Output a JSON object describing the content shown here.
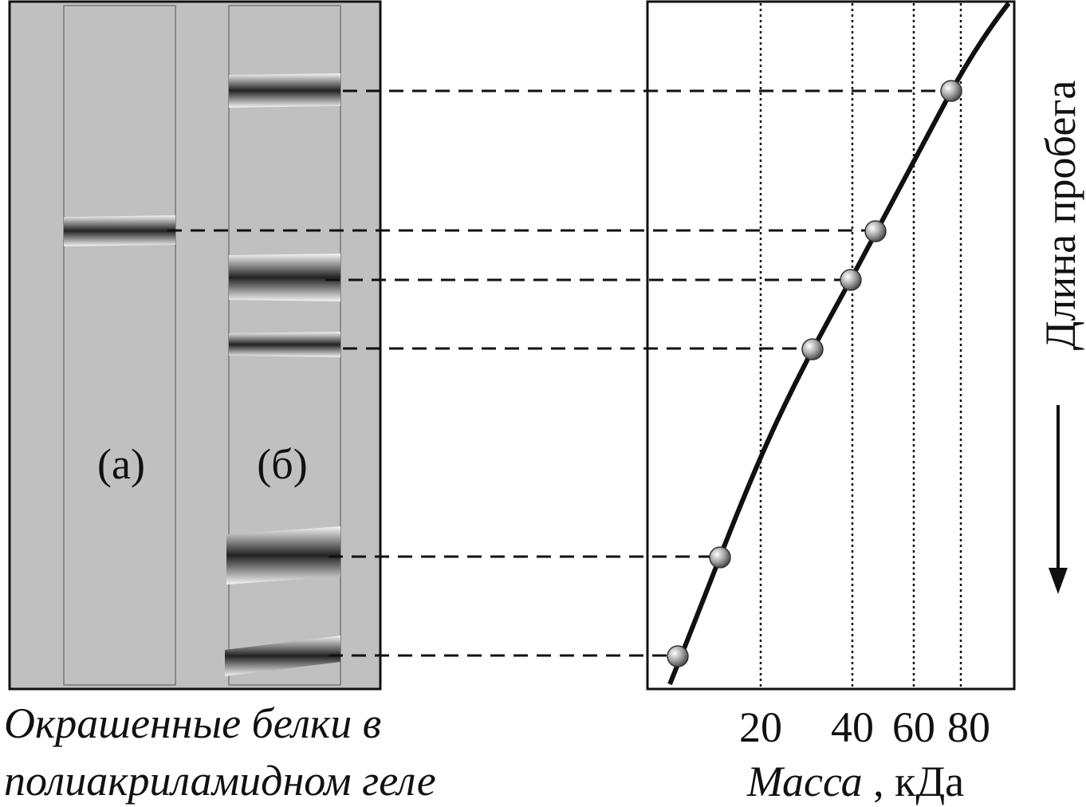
{
  "lanes": [
    "(а)",
    "(б)"
  ],
  "caption": [
    "Окрашенные белки в",
    "полиакриламидном геле"
  ],
  "axis": {
    "ticks": [
      20,
      40,
      60,
      80
    ],
    "label_italic": "Масса",
    "label_unit": ", кДа"
  },
  "side_label": "Длина пробега"
}
